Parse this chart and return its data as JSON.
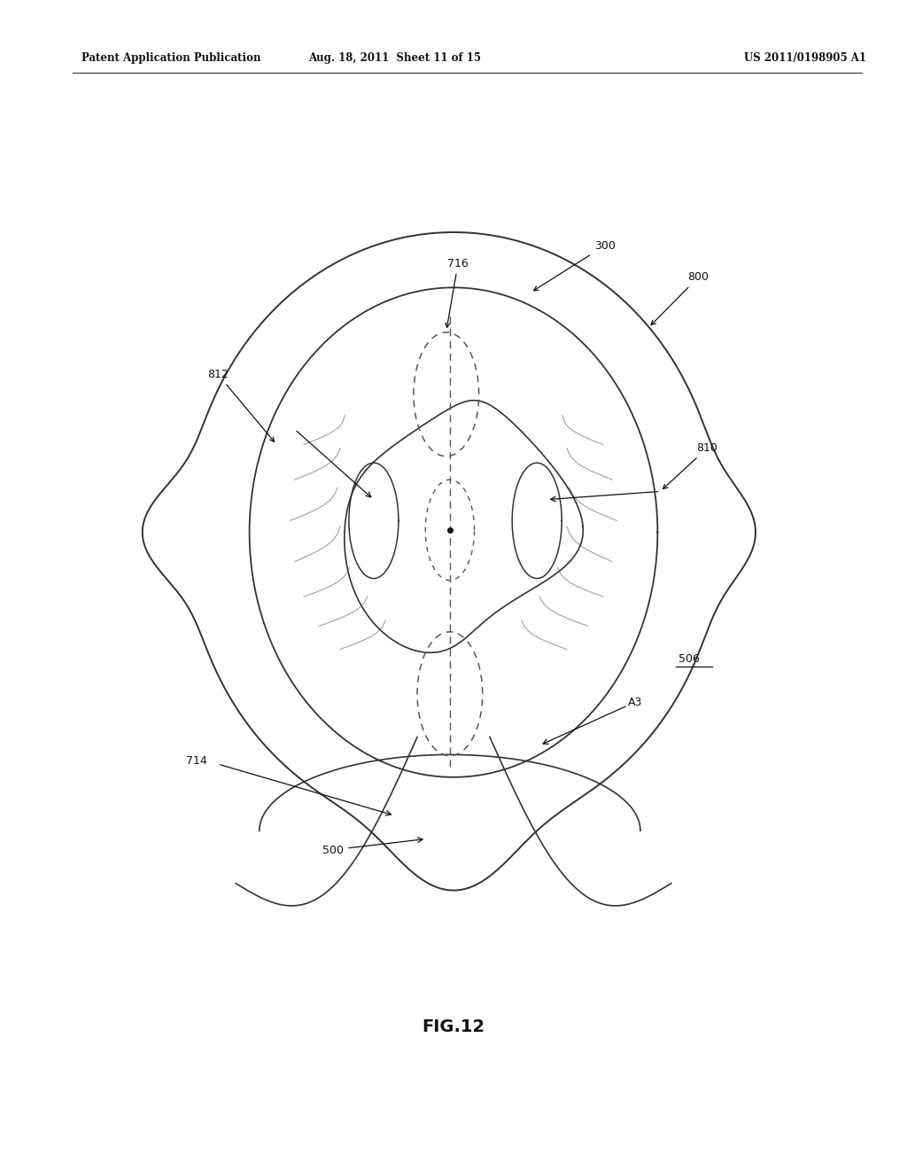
{
  "bg_color": "#ffffff",
  "line_color": "#333333",
  "dashed_color": "#555555",
  "header_left": "Patent Application Publication",
  "header_mid": "Aug. 18, 2011  Sheet 11 of 15",
  "header_right": "US 2011/0198905 A1",
  "fig_label": "FIG.12"
}
